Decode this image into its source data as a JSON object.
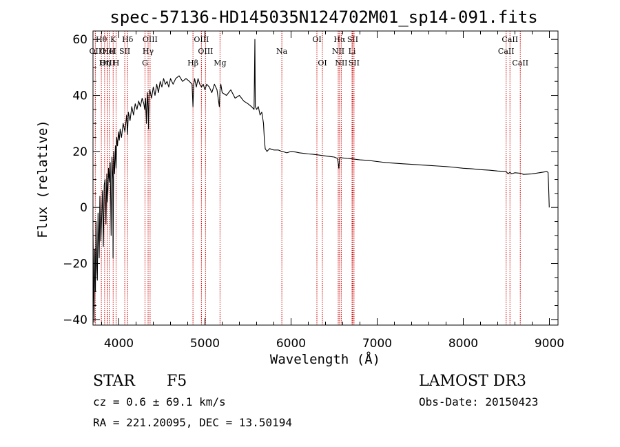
{
  "chart_data": {
    "type": "line",
    "title": "spec-57136-HD145035N124702M01_sp14-091.fits",
    "xlabel": "Wavelength (Å)",
    "ylabel": "Flux (relative)",
    "xlim": [
      3700,
      9100
    ],
    "ylim": [
      -42,
      63
    ],
    "xticks": [
      4000,
      5000,
      6000,
      7000,
      8000,
      9000
    ],
    "yticks": [
      -40,
      -20,
      0,
      20,
      40,
      60
    ],
    "series": [
      {
        "name": "flux",
        "x": [
          3700,
          3705,
          3712,
          3720,
          3728,
          3735,
          3742,
          3750,
          3758,
          3765,
          3772,
          3780,
          3790,
          3800,
          3810,
          3820,
          3830,
          3840,
          3850,
          3860,
          3870,
          3880,
          3890,
          3900,
          3910,
          3920,
          3930,
          3933,
          3940,
          3950,
          3960,
          3968,
          3975,
          3985,
          3995,
          4005,
          4015,
          4030,
          4050,
          4070,
          4090,
          4101,
          4110,
          4130,
          4150,
          4170,
          4190,
          4210,
          4230,
          4250,
          4270,
          4290,
          4300,
          4310,
          4320,
          4330,
          4340,
          4345,
          4350,
          4360,
          4380,
          4400,
          4420,
          4440,
          4460,
          4480,
          4500,
          4520,
          4540,
          4560,
          4580,
          4600,
          4630,
          4660,
          4700,
          4740,
          4780,
          4820,
          4850,
          4861,
          4870,
          4880,
          4900,
          4920,
          4940,
          4960,
          4980,
          5000,
          5020,
          5050,
          5080,
          5110,
          5140,
          5167,
          5175,
          5185,
          5200,
          5250,
          5300,
          5350,
          5400,
          5450,
          5500,
          5540,
          5570,
          5580,
          5585,
          5600,
          5620,
          5640,
          5660,
          5670,
          5680,
          5690,
          5700,
          5720,
          5750,
          5800,
          5850,
          5893,
          5900,
          5950,
          6000,
          6050,
          6100,
          6150,
          6200,
          6250,
          6300,
          6350,
          6400,
          6450,
          6500,
          6540,
          6555,
          6563,
          6570,
          6590,
          6650,
          6700,
          6750,
          6800,
          6900,
          7000,
          7100,
          7200,
          7300,
          7400,
          7500,
          7600,
          7700,
          7800,
          7900,
          8000,
          8100,
          8200,
          8300,
          8400,
          8498,
          8520,
          8542,
          8560,
          8600,
          8662,
          8700,
          8800,
          8900,
          8970,
          8985,
          8990,
          8998
        ],
        "y": [
          -8,
          -22,
          -41,
          -15,
          -30,
          -5,
          -20,
          -26,
          -2,
          -10,
          -18,
          4,
          -12,
          -4,
          6,
          -14,
          8,
          10,
          -6,
          12,
          2,
          14,
          9,
          16,
          -10,
          18,
          10,
          -18,
          20,
          12,
          22,
          14,
          25,
          22,
          27,
          24,
          28,
          25,
          30,
          27,
          33,
          26,
          34,
          31,
          36,
          33,
          37,
          35,
          38,
          36,
          39,
          37,
          35,
          39,
          30,
          41,
          35,
          28,
          40,
          42,
          39,
          43,
          40,
          44,
          41,
          45,
          43,
          46,
          44,
          45,
          43,
          46,
          44,
          46,
          47,
          45,
          46,
          45,
          44,
          36,
          44,
          46,
          43,
          46,
          44,
          43,
          44,
          42,
          44,
          43,
          41,
          44,
          42,
          36,
          42,
          44,
          41,
          40,
          42,
          39,
          40,
          38,
          37,
          36,
          35,
          60,
          36,
          35,
          36,
          33,
          34,
          32,
          30,
          24,
          21,
          20,
          21,
          20.5,
          20.5,
          20,
          20,
          19.5,
          20,
          19.8,
          19.5,
          19.3,
          19.1,
          19,
          18.8,
          18.6,
          18.4,
          18.2,
          18,
          17.5,
          14,
          17.5,
          17.8,
          17.7,
          17.5,
          17.4,
          17.2,
          17,
          16.8,
          16.4,
          16,
          15.8,
          15.6,
          15.4,
          15.2,
          15,
          14.8,
          14.6,
          14.3,
          14,
          13.8,
          13.5,
          13.3,
          13,
          12.8,
          12,
          12.6,
          12,
          12.4,
          12.2,
          11.8,
          12,
          12.5,
          12.8,
          12.5,
          8,
          0
        ]
      }
    ],
    "spectral_lines": [
      {
        "name": "OII",
        "wavelength": 3727,
        "row": 2
      },
      {
        "name": "Hθ",
        "wavelength": 3797,
        "row": 1
      },
      {
        "name": "OIII",
        "wavelength": 3869,
        "row": 2
      },
      {
        "name": "HeI",
        "wavelength": 3889,
        "row": 2
      },
      {
        "name": "Hη",
        "wavelength": 3835,
        "row": 3
      },
      {
        "name": "OIII",
        "wavelength": 3869,
        "row": 3
      },
      {
        "name": "K",
        "wavelength": 3934,
        "row": 1
      },
      {
        "name": "SII",
        "wavelength": 4069,
        "row": 2
      },
      {
        "name": "H",
        "wavelength": 3968,
        "row": 3
      },
      {
        "name": "Hδ",
        "wavelength": 4102,
        "row": 1
      },
      {
        "name": "OIII",
        "wavelength": 4363,
        "row": 1
      },
      {
        "name": "Hγ",
        "wavelength": 4340,
        "row": 2
      },
      {
        "name": "G",
        "wavelength": 4304,
        "row": 3
      },
      {
        "name": "Hβ",
        "wavelength": 4861,
        "row": 3
      },
      {
        "name": "OIII",
        "wavelength": 4959,
        "row": 1
      },
      {
        "name": "OIII",
        "wavelength": 5007,
        "row": 2
      },
      {
        "name": "Mg",
        "wavelength": 5175,
        "row": 3
      },
      {
        "name": "Na",
        "wavelength": 5893,
        "row": 2
      },
      {
        "name": "OI",
        "wavelength": 6300,
        "row": 1
      },
      {
        "name": "OI",
        "wavelength": 6364,
        "row": 3
      },
      {
        "name": "Hα",
        "wavelength": 6563,
        "row": 1
      },
      {
        "name": "NII",
        "wavelength": 6548,
        "row": 2
      },
      {
        "name": "NII",
        "wavelength": 6583,
        "row": 3
      },
      {
        "name": "SII",
        "wavelength": 6716,
        "row": 1
      },
      {
        "name": "Li",
        "wavelength": 6708,
        "row": 2
      },
      {
        "name": "SII",
        "wavelength": 6731,
        "row": 3
      },
      {
        "name": "CaII",
        "wavelength": 8542,
        "row": 1
      },
      {
        "name": "CaII",
        "wavelength": 8498,
        "row": 2
      },
      {
        "name": "CaII",
        "wavelength": 8662,
        "row": 3
      }
    ]
  },
  "info": {
    "object_class": "STAR",
    "subclass": "F5",
    "survey": "LAMOST DR3",
    "cz": "cz = 0.6 ± 69.1 km/s",
    "obs_date": "Obs-Date: 20150423",
    "coords": "RA = 221.20095, DEC =  13.50194"
  },
  "colors": {
    "axis": "#000000",
    "spectrum": "#000000",
    "line_marker": "#cc0000"
  }
}
